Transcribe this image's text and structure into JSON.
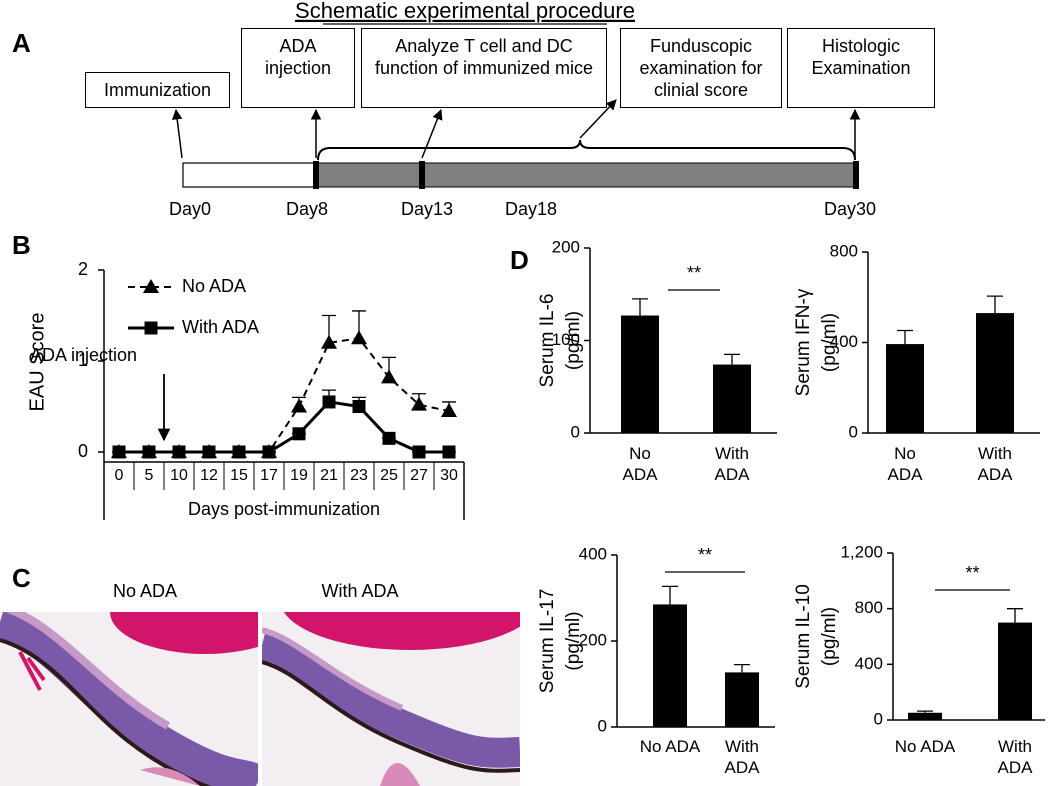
{
  "figure": {
    "panel_labels": [
      "A",
      "B",
      "C",
      "D"
    ],
    "schematic": {
      "title": "Schematic experimental procedure",
      "boxes": [
        "Immunization",
        "ADA injection",
        "Analyze T cell and DC function of immunized mice",
        "Funduscopic examination for clinial score",
        "Histologic Examination"
      ],
      "days": [
        "Day0",
        "Day8",
        "Day13",
        "Day18",
        "Day30"
      ]
    },
    "histology": {
      "labels": [
        "No ADA",
        "With ADA"
      ]
    }
  },
  "chart_data": [
    {
      "type": "line",
      "ylabel": "EAU Score",
      "xlabel": "Days post-immunization",
      "categories": [
        "0",
        "5",
        "10",
        "12",
        "15",
        "17",
        "19",
        "21",
        "23",
        "25",
        "27",
        "30"
      ],
      "ylim": [
        0,
        2
      ],
      "yticks": [
        0,
        1,
        2
      ],
      "legend": "upper left",
      "annotation": "ADA injection",
      "series": [
        {
          "name": "No ADA",
          "color": "#000000",
          "line_style": "dashed",
          "marker": "triangle",
          "values": [
            0,
            0,
            0,
            0,
            0,
            0,
            0.5,
            1.2,
            1.25,
            0.82,
            0.52,
            0.45
          ],
          "errors": [
            0,
            0,
            0,
            0,
            0,
            0,
            0.1,
            0.3,
            0.3,
            0.22,
            0.12,
            0.1
          ]
        },
        {
          "name": "With ADA",
          "color": "#000000",
          "line_style": "solid",
          "marker": "square",
          "values": [
            0,
            0,
            0,
            0,
            0,
            0,
            0.2,
            0.55,
            0.5,
            0.15,
            0,
            0
          ],
          "errors": [
            0,
            0,
            0,
            0,
            0,
            0,
            0,
            0.13,
            0.1,
            0,
            0,
            0
          ]
        }
      ]
    },
    {
      "type": "bar",
      "ylabel": [
        "Serum IL-6",
        "(pg/ml)"
      ],
      "categories": [
        "No ADA",
        "With ADA"
      ],
      "values": [
        127,
        74
      ],
      "errors": [
        18,
        11
      ],
      "color": "#000000",
      "ylim": [
        0,
        200
      ],
      "yticks": [
        0,
        100,
        200
      ],
      "annotation": "**"
    },
    {
      "type": "bar",
      "ylabel": [
        "Serum IFN-γ",
        "(pg/ml)"
      ],
      "categories": [
        "No ADA",
        "With ADA"
      ],
      "values": [
        393,
        530
      ],
      "errors": [
        60,
        75
      ],
      "color": "#000000",
      "ylim": [
        0,
        800
      ],
      "yticks": [
        0,
        400,
        800
      ]
    },
    {
      "type": "bar",
      "ylabel": [
        "Serum IL-17",
        "(pg/ml)"
      ],
      "categories": [
        "No ADA",
        "With ADA"
      ],
      "values": [
        285,
        127
      ],
      "errors": [
        42,
        18
      ],
      "color": "#000000",
      "ylim": [
        0,
        400
      ],
      "yticks": [
        0,
        200,
        400
      ],
      "annotation": "**"
    },
    {
      "type": "bar",
      "ylabel": [
        "Serum IL-10",
        "(pg/ml)"
      ],
      "categories": [
        "No ADA",
        "With ADA"
      ],
      "values": [
        52,
        700
      ],
      "errors": [
        12,
        100
      ],
      "color": "#000000",
      "ylim": [
        0,
        1200
      ],
      "yticks": [
        0,
        400,
        800,
        {
          "value": 1200,
          "label": "1,200"
        }
      ],
      "annotation": "**"
    }
  ]
}
